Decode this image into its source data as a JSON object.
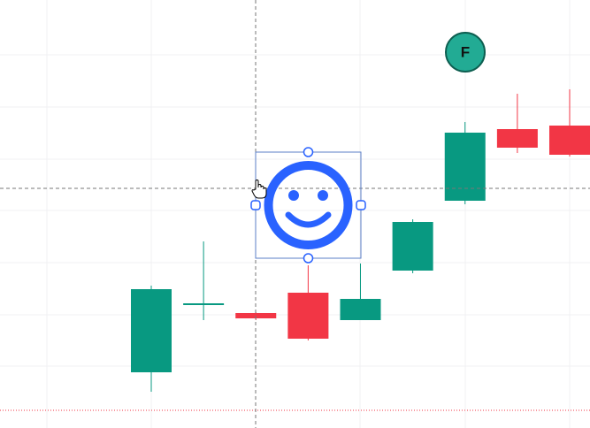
{
  "chart_data": {
    "type": "candlestick",
    "categories": [
      null,
      null,
      null,
      null,
      null,
      null,
      null,
      null,
      null
    ],
    "open": [
      63,
      139,
      130,
      153,
      122,
      178,
      257,
      338,
      342
    ],
    "high": [
      161,
      211,
      131,
      184,
      186,
      236,
      346,
      378,
      383
    ],
    "low": [
      41,
      122,
      122,
      99,
      122,
      175,
      253,
      311,
      307
    ],
    "close": [
      157,
      141,
      124,
      101,
      146,
      233,
      334,
      317,
      309
    ],
    "up_color": "#089981",
    "down_color": "#f23645",
    "ylim": [
      0,
      484
    ]
  },
  "marker": {
    "label": "F"
  }
}
